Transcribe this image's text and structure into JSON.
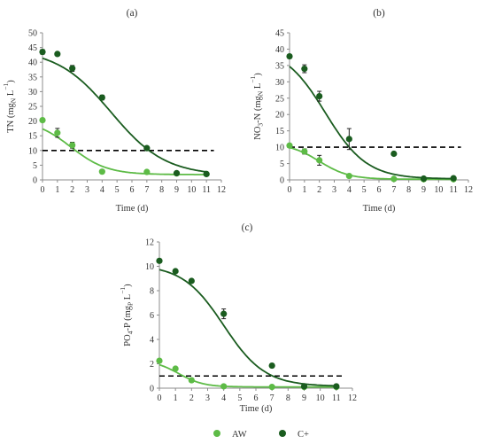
{
  "colors": {
    "AW": "#5dbb46",
    "C+": "#1a5c1f"
  },
  "legend": [
    {
      "key": "AW",
      "label": "AW",
      "color": "#5dbb46"
    },
    {
      "key": "C+",
      "label": "C+",
      "color": "#1a5c1f"
    }
  ],
  "chart_data": [
    {
      "panel": "(a)",
      "type": "scatter",
      "xlabel": "Time (d)",
      "ylabel": [
        "TN (mg",
        "N",
        " L",
        "−1",
        ")"
      ],
      "xlim": [
        0,
        12
      ],
      "xticks": [
        0,
        1,
        2,
        3,
        4,
        5,
        6,
        7,
        8,
        9,
        10,
        11,
        12
      ],
      "ylim": [
        0,
        50
      ],
      "yticks": [
        0,
        5,
        10,
        15,
        20,
        25,
        30,
        35,
        40,
        45,
        50
      ],
      "threshold": 10,
      "series": [
        {
          "name": "AW",
          "x": [
            0,
            1,
            2,
            4,
            7,
            9,
            11
          ],
          "y": [
            20.3,
            16,
            11.8,
            2.8,
            2.7,
            2.2,
            2.0
          ],
          "err": [
            0.5,
            1.5,
            1.0,
            0.3,
            0.3,
            0.2,
            0.2
          ],
          "fit": {
            "a": 18.8,
            "k": 0.82,
            "x0": 1.9,
            "c": 1.8
          }
        },
        {
          "name": "C+",
          "x": [
            0,
            1,
            2,
            4,
            7,
            9,
            11
          ],
          "y": [
            43.5,
            42.8,
            37.9,
            28.0,
            10.8,
            2.3,
            2.0
          ],
          "err": [
            0.8,
            0.6,
            1.0,
            0.8,
            0.4,
            0.3,
            0.2
          ],
          "fit": {
            "a": 43.0,
            "k": 0.55,
            "x0": 4.6,
            "c": 1.5
          }
        }
      ]
    },
    {
      "panel": "(b)",
      "type": "scatter",
      "xlabel": "Time (d)",
      "ylabel": [
        "NO",
        "3",
        "-N (mg",
        "N",
        " L",
        "−1",
        ")"
      ],
      "xlim": [
        0,
        12
      ],
      "xticks": [
        0,
        1,
        2,
        3,
        4,
        5,
        6,
        7,
        8,
        9,
        10,
        11,
        12
      ],
      "ylim": [
        0,
        45
      ],
      "yticks": [
        0,
        5,
        10,
        15,
        20,
        25,
        30,
        35,
        40,
        45
      ],
      "threshold": 10,
      "series": [
        {
          "name": "AW",
          "x": [
            0,
            1,
            2,
            4,
            7,
            9,
            11
          ],
          "y": [
            10.5,
            8.7,
            6.0,
            1.2,
            0.3,
            0.2,
            0.2
          ],
          "err": [
            0.5,
            0.8,
            1.5,
            0.3,
            0.2,
            0.1,
            0.1
          ],
          "fit": {
            "a": 11.0,
            "k": 1.0,
            "x0": 2.0,
            "c": 0.2
          }
        },
        {
          "name": "C+",
          "x": [
            0,
            1,
            2,
            4,
            7,
            9,
            11
          ],
          "y": [
            37.8,
            34.0,
            25.6,
            12.5,
            8.0,
            0.4,
            0.5
          ],
          "err": [
            0.5,
            1.2,
            1.5,
            3.2,
            0.2,
            0.2,
            0.2
          ],
          "fit": {
            "a": 40.5,
            "k": 0.72,
            "x0": 2.4,
            "c": 0.3
          }
        }
      ]
    },
    {
      "panel": "(c)",
      "type": "scatter",
      "xlabel": "Time (d)",
      "ylabel": [
        "PO",
        "4",
        "-P (mg",
        "P",
        " L",
        "−1",
        ")"
      ],
      "xlim": [
        0,
        12
      ],
      "xticks": [
        0,
        1,
        2,
        3,
        4,
        5,
        6,
        7,
        8,
        9,
        10,
        11,
        12
      ],
      "ylim": [
        0,
        12
      ],
      "yticks": [
        0,
        2,
        4,
        6,
        8,
        10,
        12
      ],
      "threshold": 1,
      "series": [
        {
          "name": "AW",
          "x": [
            0,
            1,
            2,
            4,
            7,
            9,
            11
          ],
          "y": [
            2.25,
            1.6,
            0.65,
            0.15,
            0.1,
            0.1,
            0.1
          ],
          "err": [
            0.1,
            0.1,
            0.1,
            0.05,
            0.05,
            0.05,
            0.05
          ],
          "fit": {
            "a": 2.2,
            "k": 1.3,
            "x0": 1.2,
            "c": 0.1
          }
        },
        {
          "name": "C+",
          "x": [
            0,
            1,
            2,
            4,
            7,
            9,
            11
          ],
          "y": [
            10.45,
            9.6,
            8.8,
            6.1,
            1.85,
            0.15,
            0.15
          ],
          "err": [
            0.1,
            0.1,
            0.1,
            0.4,
            0.1,
            0.05,
            0.05
          ],
          "fit": {
            "a": 10.0,
            "k": 0.78,
            "x0": 4.0,
            "c": 0.15
          }
        }
      ]
    }
  ]
}
